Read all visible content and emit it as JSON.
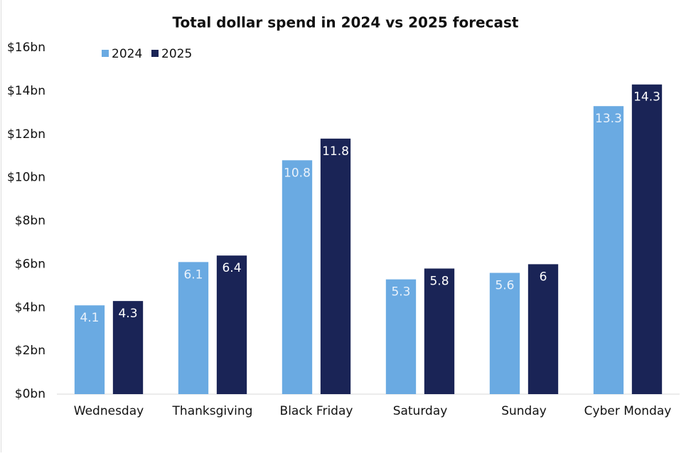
{
  "chart_data": {
    "type": "bar",
    "title": "Total dollar spend in 2024 vs 2025 forecast",
    "categories": [
      "Wednesday",
      "Thanksgiving",
      "Black Friday",
      "Saturday",
      "Sunday",
      "Cyber Monday"
    ],
    "series": [
      {
        "name": "2024",
        "color": "#6aaae2",
        "values": [
          4.1,
          6.1,
          10.8,
          5.3,
          5.6,
          13.3
        ]
      },
      {
        "name": "2025",
        "color": "#1a2456",
        "values": [
          4.3,
          6.4,
          11.8,
          5.8,
          6,
          14.3
        ]
      }
    ],
    "ylim": [
      0,
      16
    ],
    "yticks": [
      {
        "value": 0,
        "label": "$0bn"
      },
      {
        "value": 2,
        "label": "$2bn"
      },
      {
        "value": 4,
        "label": "$4bn"
      },
      {
        "value": 6,
        "label": "$6bn"
      },
      {
        "value": 8,
        "label": "$8bn"
      },
      {
        "value": 10,
        "label": "$10bn"
      },
      {
        "value": 12,
        "label": "$12bn"
      },
      {
        "value": 14,
        "label": "$14bn"
      },
      {
        "value": 16,
        "label": "$16bn"
      }
    ],
    "grid": false,
    "legend": "top-left"
  }
}
